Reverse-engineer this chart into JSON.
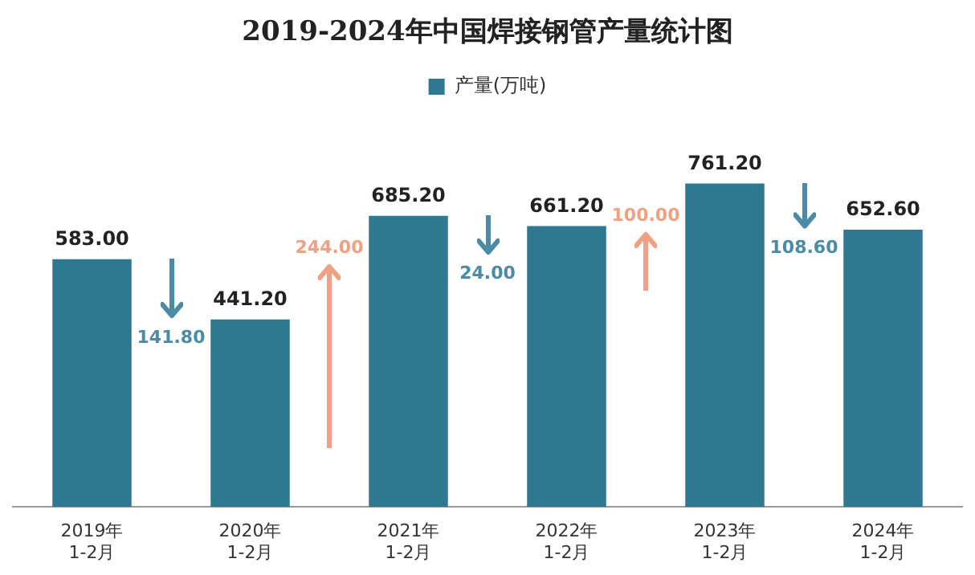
{
  "chart_data": {
    "type": "bar",
    "title": "2019-2024年中国焊接钢管产量统计图",
    "categories": [
      "2019年\n1-2月",
      "2020年\n1-2月",
      "2021年\n1-2月",
      "2022年\n1-2月",
      "2023年\n1-2月",
      "2024年\n1-2月"
    ],
    "series": [
      {
        "name": "产量(万吨)",
        "color": "#2e7891",
        "values": [
          583.0,
          441.2,
          685.2,
          661.2,
          761.2,
          652.6
        ],
        "value_labels": [
          "583.00",
          "441.20",
          "685.20",
          "661.20",
          "761.20",
          "652.60"
        ]
      }
    ],
    "annotations": [
      "141.80",
      "244.00",
      "24.00",
      "100.00",
      "108.60"
    ],
    "legend": "top",
    "grid": false,
    "tick_labels": "x"
  }
}
